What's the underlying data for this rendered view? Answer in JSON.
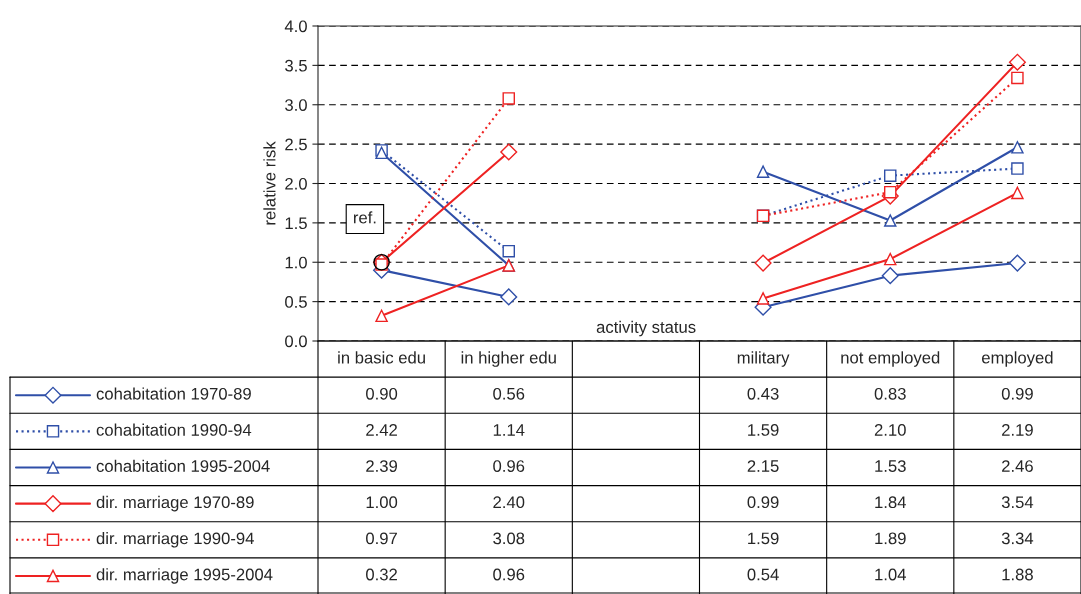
{
  "chart_data": {
    "type": "line",
    "categories": [
      "in basic edu",
      "in higher edu",
      null,
      "military",
      "not employed",
      "employed"
    ],
    "xlabel": "activity status",
    "ylabel": "relative risk",
    "ylim": [
      0.0,
      4.0
    ],
    "yticks": [
      {
        "value": 0.0,
        "label": "0.0"
      },
      {
        "value": 0.5,
        "label": "0.5"
      },
      {
        "value": 1.0,
        "label": "1.0"
      },
      {
        "value": 1.5,
        "label": "1.5"
      },
      {
        "value": 2.0,
        "label": "2.0"
      },
      {
        "value": 2.5,
        "label": "2.5"
      },
      {
        "value": 3.0,
        "label": "3.0"
      },
      {
        "value": 3.5,
        "label": "3.5"
      },
      {
        "value": 4.0,
        "label": "4.0"
      }
    ],
    "grid": "y",
    "legend": "bottom left",
    "annotations": [
      {
        "text": "ref.",
        "x": "in basic edu",
        "y": 1.0
      }
    ],
    "series": [
      {
        "name": "cohabitation 1970-89",
        "color": "#2f4fa8",
        "marker": "diamond",
        "line_style": "solid",
        "values": [
          0.9,
          0.56,
          null,
          0.43,
          0.83,
          0.99
        ],
        "value_labels": [
          "0.90",
          "0.56",
          null,
          "0.43",
          "0.83",
          "0.99"
        ]
      },
      {
        "name": "cohabitation 1990-94",
        "color": "#2f4fa8",
        "marker": "square",
        "line_style": "dotted",
        "values": [
          2.42,
          1.14,
          null,
          1.59,
          2.1,
          2.19
        ],
        "value_labels": [
          "2.42",
          "1.14",
          null,
          "1.59",
          "2.10",
          "2.19"
        ]
      },
      {
        "name": "cohabitation 1995-2004",
        "color": "#2f4fa8",
        "marker": "triangle",
        "line_style": "solid",
        "values": [
          2.39,
          0.96,
          null,
          2.15,
          1.53,
          2.46
        ],
        "value_labels": [
          "2.39",
          "0.96",
          null,
          "2.15",
          "1.53",
          "2.46"
        ]
      },
      {
        "name": "dir. marriage 1970-89",
        "color": "#ee2222",
        "marker": "diamond",
        "line_style": "solid",
        "values": [
          1.0,
          2.4,
          null,
          0.99,
          1.84,
          3.54
        ],
        "value_labels": [
          "1.00",
          "2.40",
          null,
          "0.99",
          "1.84",
          "3.54"
        ]
      },
      {
        "name": "dir. marriage 1990-94",
        "color": "#ee2222",
        "marker": "square",
        "line_style": "dotted",
        "values": [
          0.97,
          3.08,
          null,
          1.59,
          1.89,
          3.34
        ],
        "value_labels": [
          "0.97",
          "3.08",
          null,
          "1.59",
          "1.89",
          "3.34"
        ]
      },
      {
        "name": "dir. marriage 1995-2004",
        "color": "#ee2222",
        "marker": "triangle",
        "line_style": "solid",
        "values": [
          0.32,
          0.96,
          null,
          0.54,
          1.04,
          1.88
        ],
        "value_labels": [
          "0.32",
          "0.96",
          null,
          "0.54",
          "1.04",
          "1.88"
        ]
      }
    ]
  }
}
